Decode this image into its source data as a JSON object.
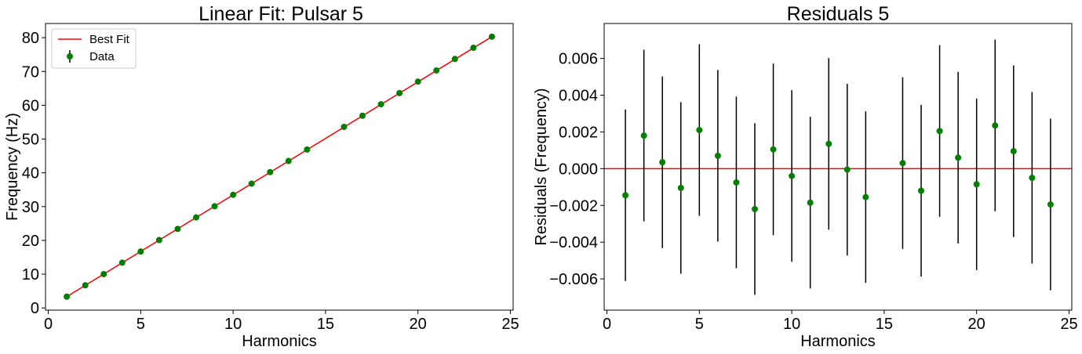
{
  "colors": {
    "fit_line": "#ff0000",
    "points": "#008000",
    "error_bars": "#000000",
    "zero_line": "#ff0000"
  },
  "chart_data": [
    {
      "type": "scatter",
      "title": "Linear Fit: Pulsar 5",
      "xlabel": "Harmonics",
      "ylabel": "Frequency (Hz)",
      "xlim": [
        -0.15,
        25.15
      ],
      "ylim": [
        -0.65,
        84.2
      ],
      "xticks": [
        0,
        5,
        10,
        15,
        20,
        25
      ],
      "yticks": [
        0,
        10,
        20,
        30,
        40,
        50,
        60,
        70,
        80
      ],
      "grid": false,
      "legend": {
        "position": "top-left",
        "entries": [
          "Best Fit",
          "Data"
        ]
      },
      "series": [
        {
          "name": "Best Fit",
          "kind": "line",
          "x": [
            1,
            24
          ],
          "y": [
            3.35,
            80.3
          ]
        },
        {
          "name": "Data",
          "kind": "errorbar-points",
          "x": [
            1,
            2,
            3,
            4,
            5,
            6,
            7,
            8,
            9,
            10,
            11,
            12,
            13,
            14,
            16,
            17,
            18,
            19,
            20,
            21,
            22,
            23,
            24
          ],
          "y": [
            3.35,
            6.7,
            10.0,
            13.4,
            16.7,
            20.1,
            23.4,
            26.8,
            30.1,
            33.5,
            36.8,
            40.2,
            43.5,
            46.9,
            53.6,
            56.9,
            60.3,
            63.6,
            67.0,
            70.3,
            73.7,
            77.0,
            80.3
          ]
        }
      ]
    },
    {
      "type": "scatter",
      "title": "Residuals 5",
      "xlabel": "Harmonics",
      "ylabel": "Residuals (Frequency)",
      "xlim": [
        -0.15,
        25.15
      ],
      "ylim": [
        -0.0077,
        0.0079
      ],
      "xticks": [
        0,
        5,
        10,
        15,
        20,
        25
      ],
      "yticks": [
        -0.006,
        -0.004,
        -0.002,
        0.0,
        0.002,
        0.004,
        0.006
      ],
      "ytick_labels": [
        "−0.006",
        "−0.004",
        "−0.002",
        "0.000",
        "0.002",
        "0.004",
        "0.006"
      ],
      "grid": false,
      "reference_line_y": 0,
      "series": [
        {
          "kind": "errorbar-points",
          "x": [
            1,
            2,
            3,
            4,
            5,
            6,
            7,
            8,
            9,
            10,
            11,
            12,
            13,
            14,
            16,
            17,
            18,
            19,
            20,
            21,
            22,
            23,
            24
          ],
          "y": [
            -0.00145,
            0.0018,
            0.00035,
            -0.00105,
            0.0021,
            0.0007,
            -0.00075,
            -0.0022,
            0.00105,
            -0.0004,
            -0.00185,
            0.00135,
            -5e-05,
            -0.00155,
            0.0003,
            -0.0012,
            0.00205,
            0.0006,
            -0.00085,
            0.00235,
            0.00095,
            -0.0005,
            -0.00195
          ],
          "yerr": 0.00467
        }
      ]
    }
  ]
}
